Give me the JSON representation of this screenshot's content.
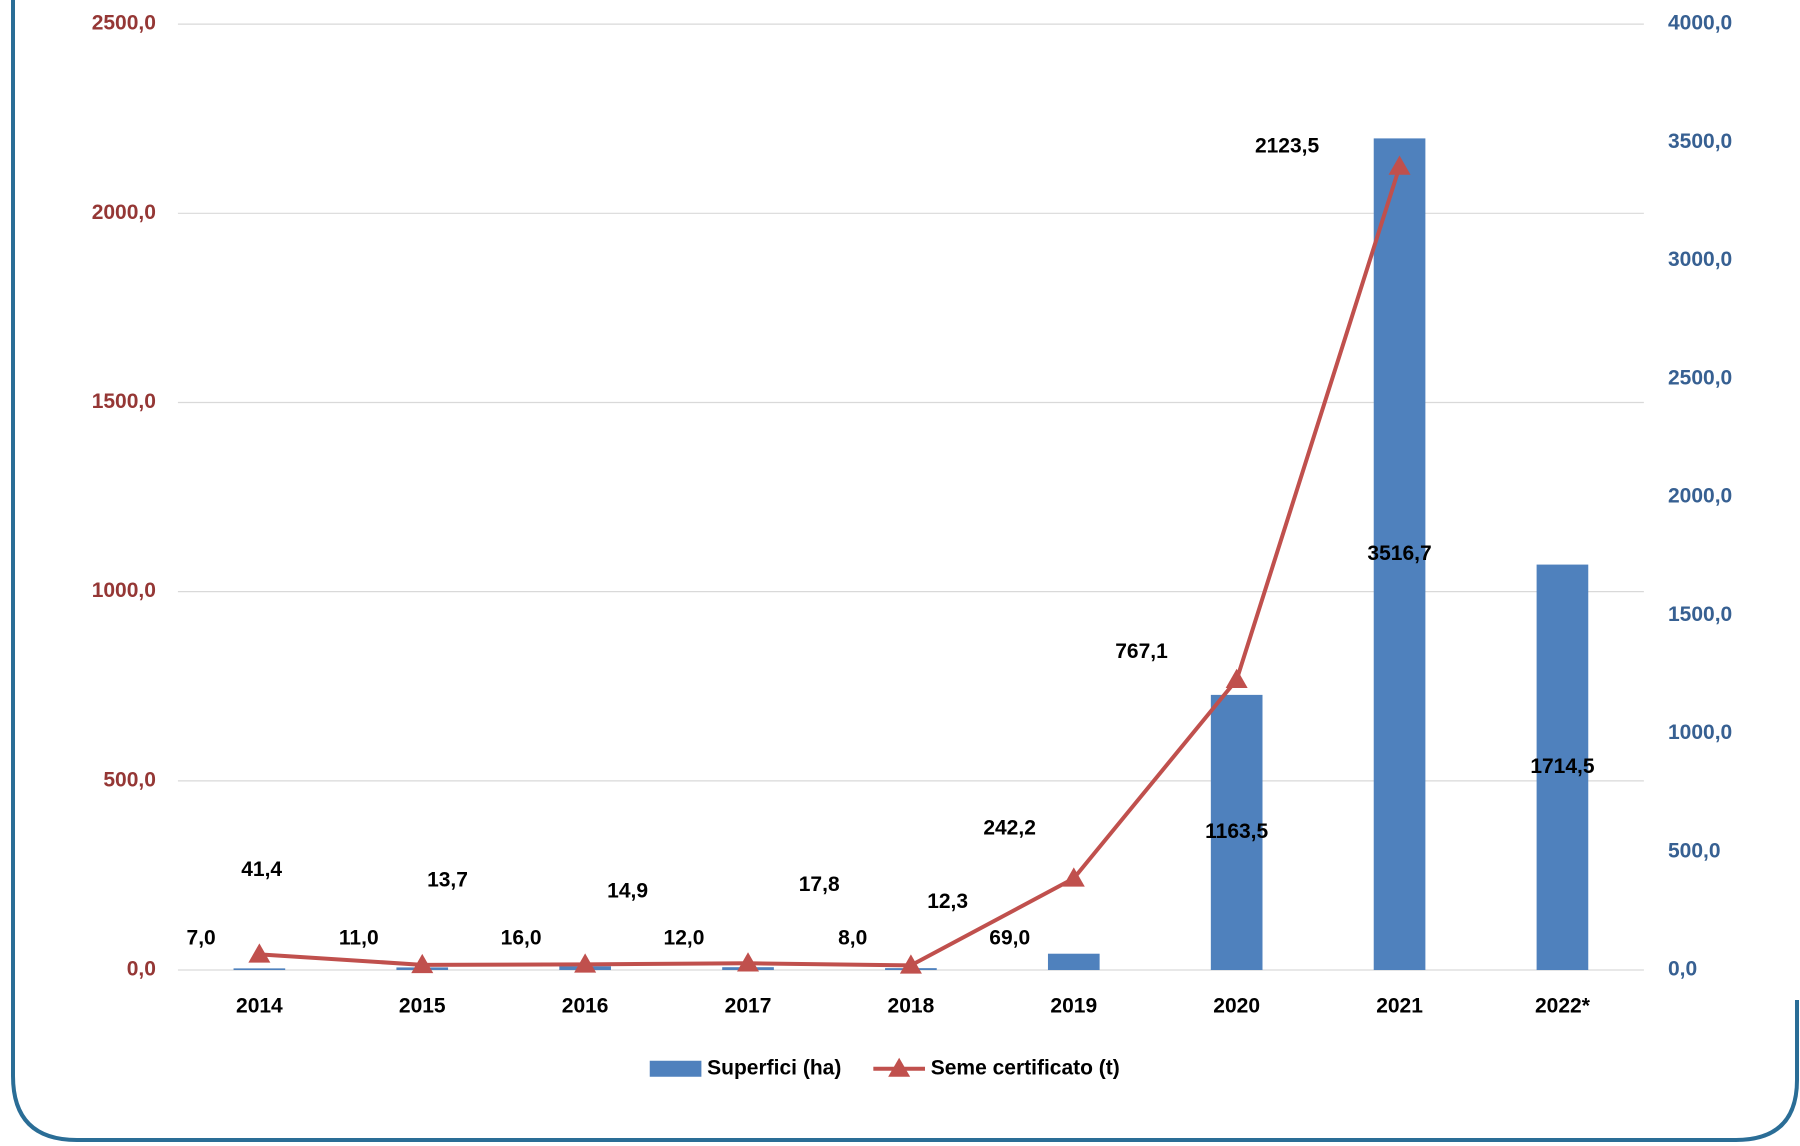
{
  "chart_data": {
    "type": "combo",
    "categories": [
      "2014",
      "2015",
      "2016",
      "2017",
      "2018",
      "2019",
      "2020",
      "2021",
      "2022*"
    ],
    "series": [
      {
        "name": "Superfici (ha)",
        "type": "bar",
        "axis": "y2",
        "color": "#4F81BD",
        "values": [
          7.0,
          11.0,
          16.0,
          12.0,
          8.0,
          69.0,
          1163.5,
          3516.7,
          1714.5
        ],
        "value_labels": [
          "7,0",
          "11,0",
          "16,0",
          "12,0",
          "8,0",
          "69,0",
          "1163,5",
          "3516,7",
          "1714,5"
        ]
      },
      {
        "name": "Seme certificato (t)",
        "type": "line",
        "color": "#C0504D",
        "values": [
          41.4,
          13.7,
          14.9,
          17.8,
          12.3,
          242.2,
          767.1,
          2123.5,
          null
        ],
        "value_labels": [
          "41,4",
          "13,7",
          "14,9",
          "17,8",
          "12,3",
          "242,2",
          "767,1",
          "2123,5",
          null
        ]
      }
    ],
    "ylim": [
      0,
      2500
    ],
    "yticks": [
      {
        "value": 0,
        "label": "0,0"
      },
      {
        "value": 500,
        "label": "500,0"
      },
      {
        "value": 1000,
        "label": "1000,0"
      },
      {
        "value": 1500,
        "label": "1500,0"
      },
      {
        "value": 2000,
        "label": "2000,0"
      },
      {
        "value": 2500,
        "label": "2500,0"
      }
    ],
    "y_color": "#953735",
    "y2lim": [
      0,
      4000
    ],
    "y2ticks": [
      {
        "value": 0,
        "label": "0,0"
      },
      {
        "value": 500,
        "label": "500,0"
      },
      {
        "value": 1000,
        "label": "1000,0"
      },
      {
        "value": 1500,
        "label": "1500,0"
      },
      {
        "value": 2000,
        "label": "2000,0"
      },
      {
        "value": 2500,
        "label": "2500,0"
      },
      {
        "value": 3000,
        "label": "3000,0"
      },
      {
        "value": 3500,
        "label": "3500,0"
      },
      {
        "value": 4000,
        "label": "4000,0"
      }
    ],
    "y2_color": "#376092",
    "grid": true,
    "legend": "bottom"
  }
}
